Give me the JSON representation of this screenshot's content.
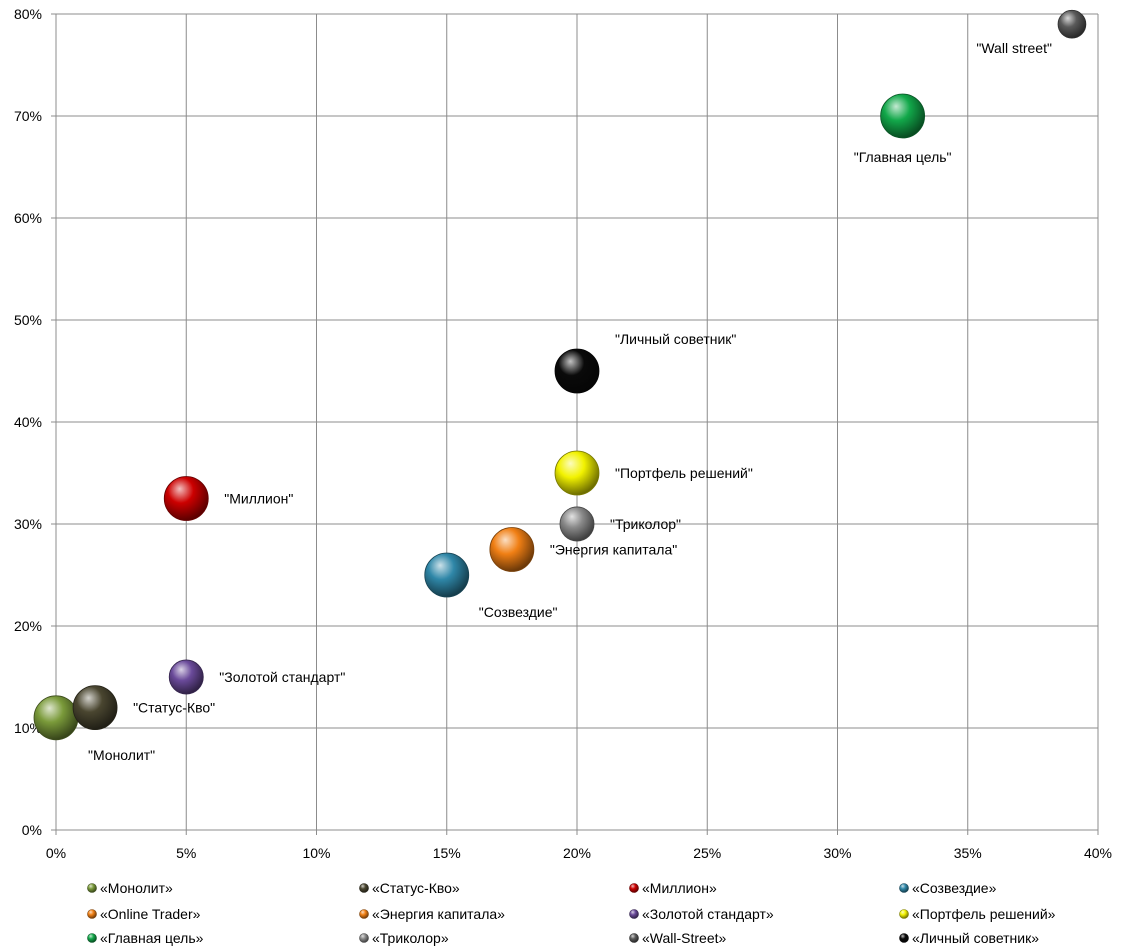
{
  "chart_data": {
    "type": "scatter",
    "xlim": [
      0,
      0.4
    ],
    "ylim": [
      0,
      0.8
    ],
    "x_ticks": [
      {
        "v": 0.0,
        "label": "0%"
      },
      {
        "v": 0.05,
        "label": "5%"
      },
      {
        "v": 0.1,
        "label": "10%"
      },
      {
        "v": 0.15,
        "label": "15%"
      },
      {
        "v": 0.2,
        "label": "20%"
      },
      {
        "v": 0.25,
        "label": "25%"
      },
      {
        "v": 0.3,
        "label": "30%"
      },
      {
        "v": 0.35,
        "label": "35%"
      },
      {
        "v": 0.4,
        "label": "40%"
      }
    ],
    "y_ticks": [
      {
        "v": 0.0,
        "label": "0%"
      },
      {
        "v": 0.1,
        "label": "10%"
      },
      {
        "v": 0.2,
        "label": "20%"
      },
      {
        "v": 0.3,
        "label": "30%"
      },
      {
        "v": 0.4,
        "label": "40%"
      },
      {
        "v": 0.5,
        "label": "50%"
      },
      {
        "v": 0.6,
        "label": "60%"
      },
      {
        "v": 0.7,
        "label": "70%"
      },
      {
        "v": 0.8,
        "label": "80%"
      }
    ],
    "grid": true,
    "legend_position": "bottom",
    "series": [
      {
        "name": "«Монолит»",
        "x": 0.0,
        "y": 0.11,
        "size": 5,
        "color": "#7a9a3a",
        "label": "\"Монолит\"",
        "label_pos": "bottom-right"
      },
      {
        "name": "«Статус-Кво»",
        "x": 0.015,
        "y": 0.12,
        "size": 5,
        "color": "#4a4630",
        "label": "\"Статус-Кво\"",
        "label_pos": "right"
      },
      {
        "name": "«Миллион»",
        "x": 0.05,
        "y": 0.325,
        "size": 5,
        "color": "#cc0000",
        "label": "\"Миллион\"",
        "label_pos": "right"
      },
      {
        "name": "«Созвездие»",
        "x": 0.15,
        "y": 0.25,
        "size": 5,
        "color": "#2f87a8",
        "label": "\"Созвездие\"",
        "label_pos": "bottom-right"
      },
      {
        "name": "«Online Trader»",
        "x": null,
        "y": null,
        "size": 0,
        "color": "#f07f14",
        "label": "",
        "label_pos": "none"
      },
      {
        "name": "«Энергия капитала»",
        "x": 0.175,
        "y": 0.275,
        "size": 5,
        "color": "#f07f14",
        "label": "\"Энергия капитала\"",
        "label_pos": "right"
      },
      {
        "name": "«Золотой стандарт»",
        "x": 0.05,
        "y": 0.15,
        "size": 3,
        "color": "#6a4a9a",
        "label": "\"Золотой стандарт\"",
        "label_pos": "right"
      },
      {
        "name": "«Портфель решений»",
        "x": 0.2,
        "y": 0.35,
        "size": 5,
        "color": "#f2f200",
        "label": "\"Портфель решений\"",
        "label_pos": "right"
      },
      {
        "name": "«Главная цель»",
        "x": 0.325,
        "y": 0.7,
        "size": 5,
        "color": "#12a84a",
        "label": "\"Главная цель\"",
        "label_pos": "bottom"
      },
      {
        "name": "«Триколор»",
        "x": 0.2,
        "y": 0.3,
        "size": 3,
        "color": "#8a8a8a",
        "label": "\"Триколор\"",
        "label_pos": "right"
      },
      {
        "name": "«Wall-Street»",
        "x": 0.39,
        "y": 0.79,
        "size": 2,
        "color": "#5a5a5a",
        "label": "\"Wall street\"",
        "label_pos": "bottom-left"
      },
      {
        "name": "«Личный советник»",
        "x": 0.2,
        "y": 0.45,
        "size": 5,
        "color": "#0a0a0a",
        "label": "\"Личный советник\"",
        "label_pos": "top-right"
      }
    ]
  }
}
